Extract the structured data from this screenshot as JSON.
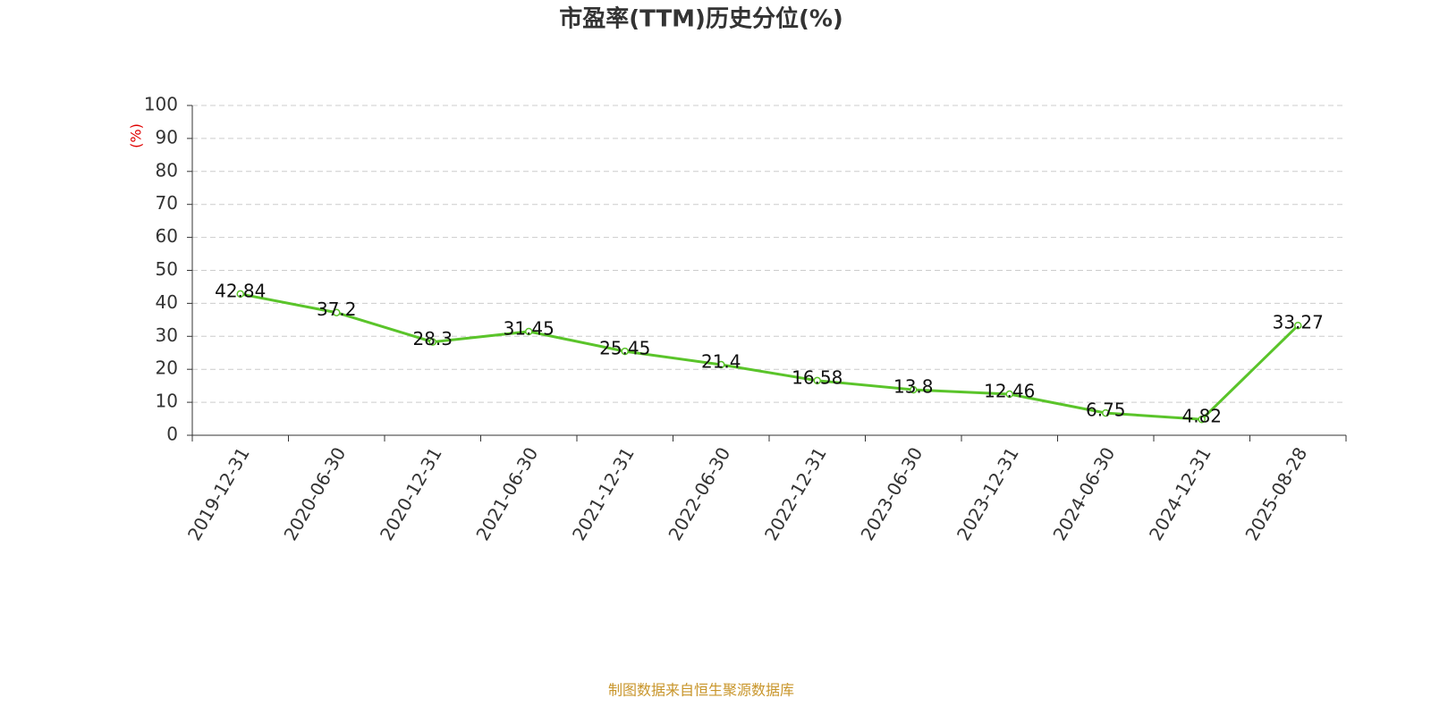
{
  "chart_data": {
    "type": "line",
    "title": "市盈率(TTM)历史分位(%)",
    "y_label": "(%)",
    "source": "制图数据来自恒生聚源数据库",
    "categories": [
      "2019-12-31",
      "2020-06-30",
      "2020-12-31",
      "2021-06-30",
      "2021-12-31",
      "2022-06-30",
      "2022-12-31",
      "2023-06-30",
      "2023-12-31",
      "2024-06-30",
      "2024-12-31",
      "2025-08-28"
    ],
    "values": [
      42.84,
      37.2,
      28.3,
      31.45,
      25.45,
      21.4,
      16.58,
      13.8,
      12.46,
      6.75,
      4.82,
      33.27
    ],
    "color": "#5ac42a",
    "ylim": [
      0,
      100
    ],
    "yticks": [
      0,
      10,
      20,
      30,
      40,
      50,
      60,
      70,
      80,
      90,
      100
    ],
    "grid": true
  }
}
